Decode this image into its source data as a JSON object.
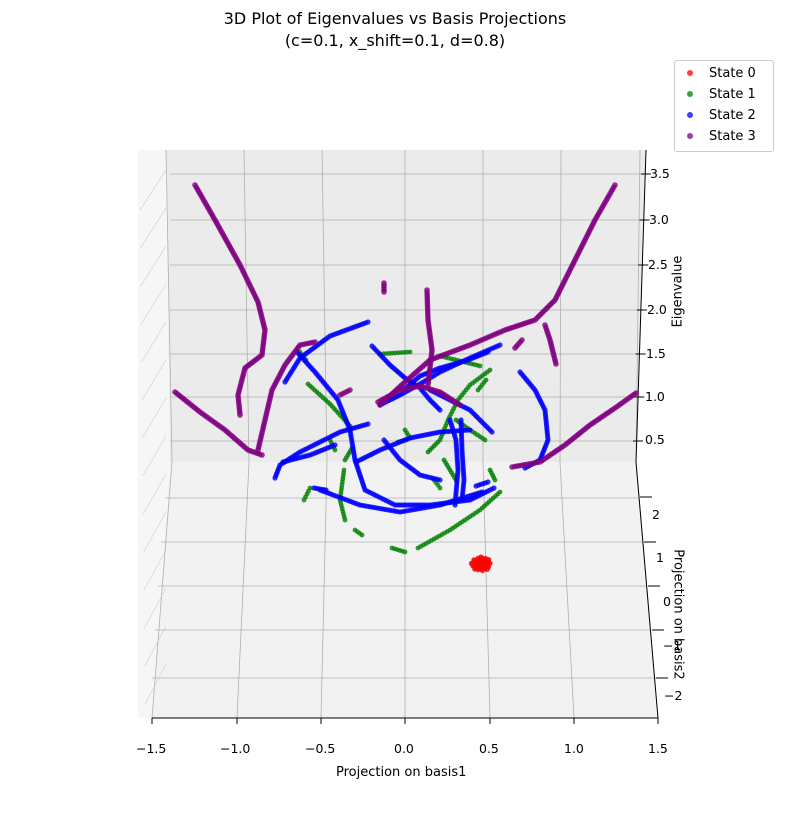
{
  "chart_data": {
    "type": "scatter",
    "projection": "3d",
    "title_line1": "3D Plot of Eigenvalues vs Basis Projections",
    "title_line2": "(c=0.1, x_shift=0.1, d=0.8)",
    "xlabel": "Projection on basis1",
    "ylabel": "Projection on basis2",
    "zlabel": "Eigenvalue",
    "xlim": [
      -1.5,
      1.5
    ],
    "ylim": [
      -2.5,
      2.5
    ],
    "zlim": [
      0.0,
      3.7
    ],
    "xticks": [
      "−1.5",
      "−1.0",
      "−0.5",
      "0.0",
      "0.5",
      "1.0",
      "1.5"
    ],
    "yticks": [
      "−2",
      "−1",
      "0",
      "1",
      "2"
    ],
    "zticks": [
      "0.5",
      "1.0",
      "1.5",
      "2.0",
      "2.5",
      "3.0",
      "3.5"
    ],
    "legend_position": "top-right",
    "series": [
      {
        "name": "State 0",
        "color": "#ff0000",
        "description": "tight cluster near x=0.45, y=0.2, z=0.1"
      },
      {
        "name": "State 1",
        "color": "#008000",
        "description": "ring of short arcs around origin, eigenvalue ~0.5-1.2"
      },
      {
        "name": "State 2",
        "color": "#0000ff",
        "description": "looping arcs around origin, eigenvalue ~0.6-2.0"
      },
      {
        "name": "State 3",
        "color": "#800080",
        "description": "four long outer branches rising to eigenvalue ~3.5"
      }
    ]
  }
}
